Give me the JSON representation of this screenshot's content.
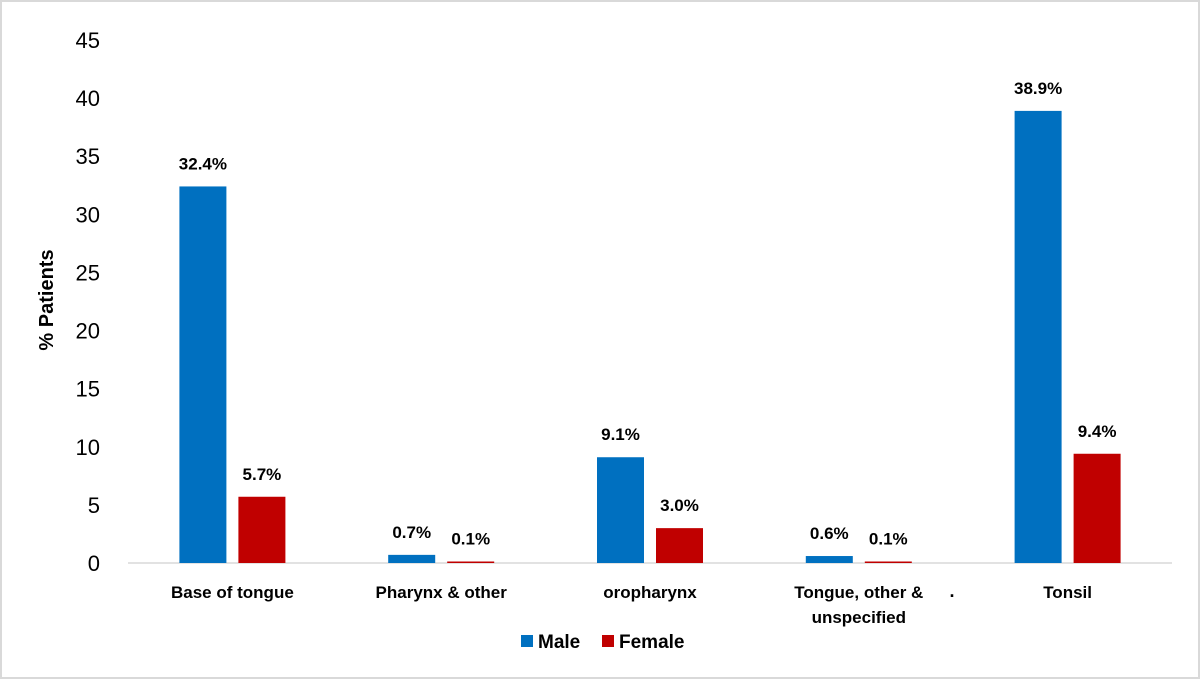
{
  "chart_data": {
    "type": "bar",
    "title": "",
    "xlabel": "",
    "ylabel": "% Patients",
    "ylim": [
      0,
      45
    ],
    "yticks": [
      "0",
      "5",
      "10",
      "15",
      "20",
      "25",
      "30",
      "35",
      "40",
      "45"
    ],
    "categories": [
      [
        "Base of tongue"
      ],
      [
        "Pharynx & other"
      ],
      [
        "oropharynx"
      ],
      [
        "Tongue, other &",
        "unspecified"
      ],
      [
        "Tonsil"
      ]
    ],
    "series": [
      {
        "name": "Male",
        "color": "#0070c0",
        "values": [
          32.4,
          0.7,
          9.1,
          0.6,
          38.9
        ],
        "labels": [
          "32.4%",
          "0.7%",
          "9.1%",
          "0.6%",
          "38.9%"
        ]
      },
      {
        "name": "Female",
        "color": "#c00000",
        "values": [
          5.7,
          0.1,
          3.0,
          0.1,
          9.4
        ],
        "labels": [
          "5.7%",
          "0.1%",
          "3.0%",
          "0.1%",
          "9.4%"
        ]
      }
    ],
    "legend_position": "bottom",
    "grid": false,
    "annotation": "."
  }
}
